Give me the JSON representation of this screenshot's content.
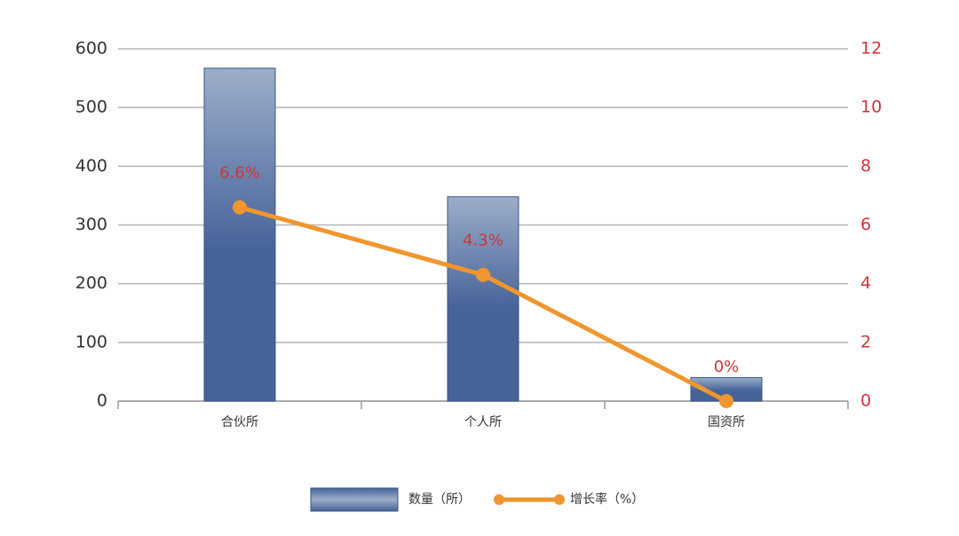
{
  "chart_data": {
    "type": "bar_line",
    "categories": [
      "合伙所",
      "个人所",
      "国资所"
    ],
    "series": [
      {
        "name": "数量（所）",
        "type": "bar",
        "color": "#46639a",
        "values": [
          567,
          348,
          40
        ]
      },
      {
        "name": "增长率（%）",
        "type": "line",
        "axis": "y2",
        "color": "#f0962e",
        "values": [
          6.6,
          4.3,
          0
        ],
        "value_labels": [
          "6.6%",
          "4.3%",
          "0%"
        ]
      }
    ],
    "ylim": [
      0,
      600
    ],
    "yticks": [
      0,
      100,
      200,
      300,
      400,
      500,
      600
    ],
    "y2lim": [
      0,
      12
    ],
    "y2ticks": [
      0,
      2,
      4,
      6,
      8,
      10,
      12
    ],
    "grid": true,
    "legend": "bottom"
  }
}
